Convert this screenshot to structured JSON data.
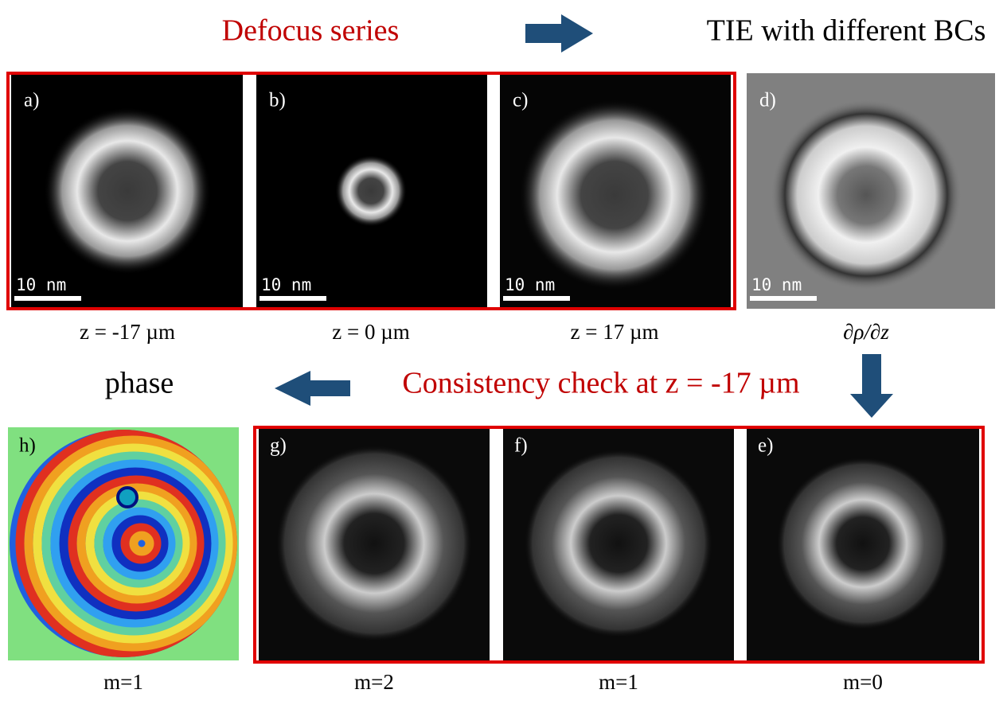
{
  "header": {
    "left": "Defocus series",
    "right": "TIE with different BCs"
  },
  "top_panels": [
    {
      "letter": "a)",
      "scale_bar": "10 nm",
      "caption": "z = -17 µm"
    },
    {
      "letter": "b)",
      "scale_bar": "10 nm",
      "caption": "z = 0 µm"
    },
    {
      "letter": "c)",
      "scale_bar": "10 nm",
      "caption": "z = 17 µm"
    },
    {
      "letter": "d)",
      "scale_bar": "10 nm",
      "caption": "∂ρ/∂z"
    }
  ],
  "middle": {
    "left": "phase",
    "right": "Consistency check at z = -17 µm"
  },
  "bottom_panels": [
    {
      "letter": "h)",
      "caption": "m=1"
    },
    {
      "letter": "g)",
      "caption": "m=2"
    },
    {
      "letter": "f)",
      "caption": "m=1"
    },
    {
      "letter": "e)",
      "caption": "m=0"
    }
  ]
}
